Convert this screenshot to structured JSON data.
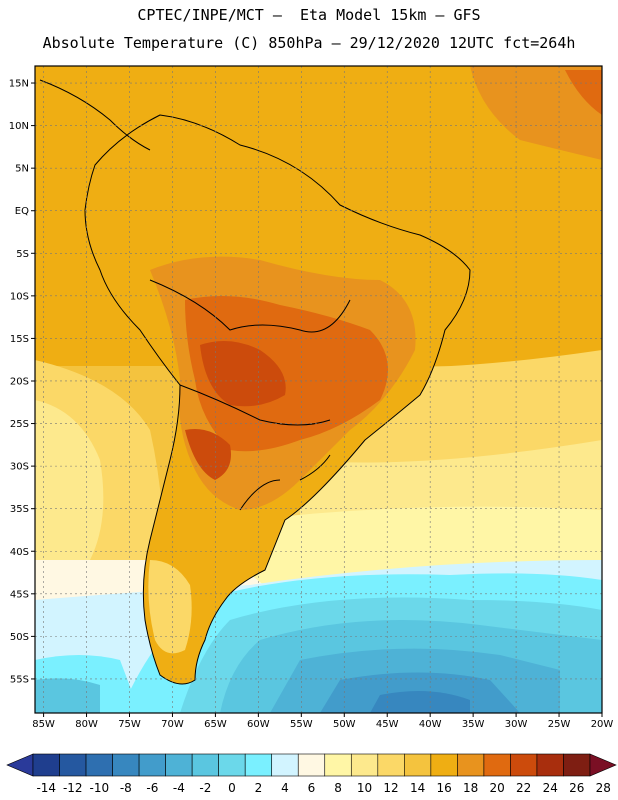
{
  "header": {
    "line1": "CPTEC/INPE/MCT –  Eta Model 15km – GFS",
    "line2": "Absolute Temperature (C) 850hPa – 29/12/2020 12UTC fct=264h"
  },
  "map": {
    "projection": "lat-lon",
    "lon_range": [
      -86,
      -20
    ],
    "lat_range": [
      -59,
      17
    ],
    "lat_ticks": [
      {
        "value": 15,
        "label": "15N"
      },
      {
        "value": 10,
        "label": "10N"
      },
      {
        "value": 5,
        "label": "5N"
      },
      {
        "value": 0,
        "label": "EQ"
      },
      {
        "value": -5,
        "label": "5S"
      },
      {
        "value": -10,
        "label": "10S"
      },
      {
        "value": -15,
        "label": "15S"
      },
      {
        "value": -20,
        "label": "20S"
      },
      {
        "value": -25,
        "label": "25S"
      },
      {
        "value": -30,
        "label": "30S"
      },
      {
        "value": -35,
        "label": "35S"
      },
      {
        "value": -40,
        "label": "40S"
      },
      {
        "value": -45,
        "label": "45S"
      },
      {
        "value": -50,
        "label": "50S"
      },
      {
        "value": -55,
        "label": "55S"
      }
    ],
    "lon_ticks": [
      {
        "value": -85,
        "label": "85W"
      },
      {
        "value": -80,
        "label": "80W"
      },
      {
        "value": -75,
        "label": "75W"
      },
      {
        "value": -70,
        "label": "70W"
      },
      {
        "value": -65,
        "label": "65W"
      },
      {
        "value": -60,
        "label": "60W"
      },
      {
        "value": -55,
        "label": "55W"
      },
      {
        "value": -50,
        "label": "50W"
      },
      {
        "value": -45,
        "label": "45W"
      },
      {
        "value": -40,
        "label": "40W"
      },
      {
        "value": -35,
        "label": "35W"
      },
      {
        "value": -30,
        "label": "30W"
      },
      {
        "value": -25,
        "label": "25W"
      },
      {
        "value": -20,
        "label": "20W"
      }
    ]
  },
  "colorbar": {
    "labels": [
      "-14",
      "-12",
      "-10",
      "-8",
      "-6",
      "-4",
      "-2",
      "0",
      "2",
      "4",
      "6",
      "8",
      "10",
      "12",
      "14",
      "16",
      "18",
      "20",
      "22",
      "24",
      "26",
      "28"
    ],
    "colors": [
      "#1f3e8e",
      "#2558a0",
      "#2e6fb0",
      "#3787bf",
      "#429ccb",
      "#4eb2d6",
      "#5ac6e0",
      "#6bd8ea",
      "#7af0ff",
      "#d2f4ff",
      "#fff8e3",
      "#fff6a6",
      "#fde98d",
      "#fbd867",
      "#f4c33e",
      "#efae13",
      "#e8931e",
      "#e06a10",
      "#cc4b0c",
      "#a82e0d",
      "#7e1e12"
    ],
    "under_color": "#2a3a9a",
    "over_color": "#7a0f24"
  }
}
